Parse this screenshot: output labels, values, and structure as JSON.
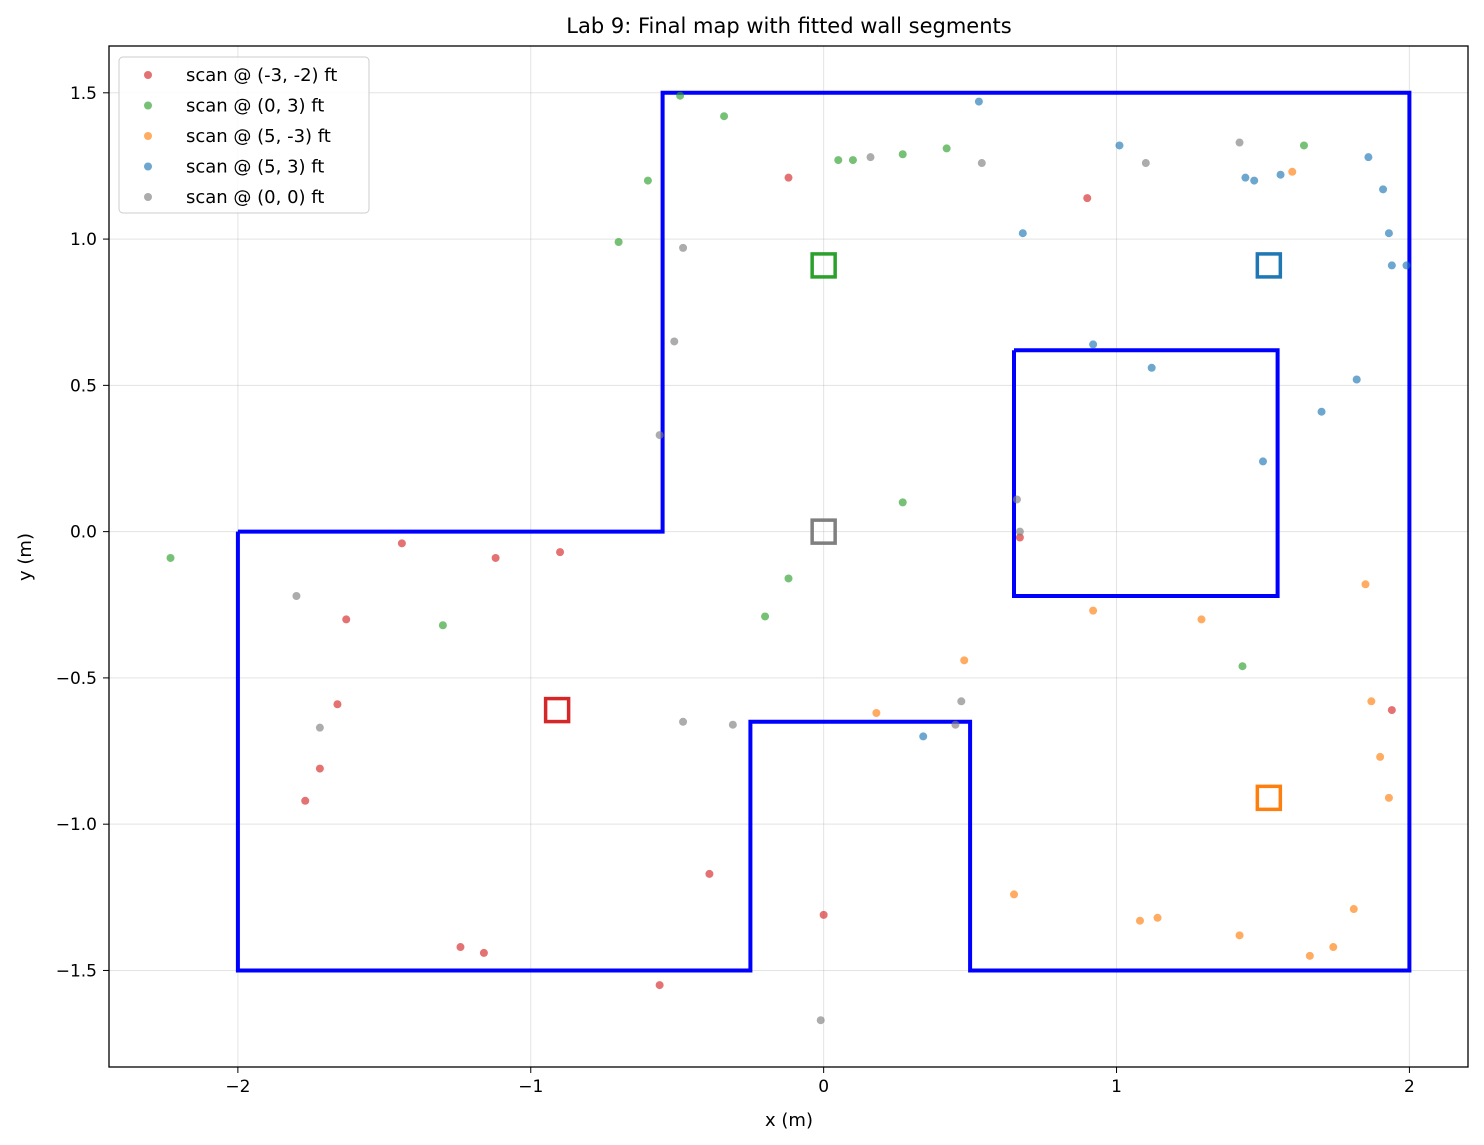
{
  "chart_data": {
    "type": "scatter",
    "title": "Lab 9: Final map with fitted wall segments",
    "xlabel": "x (m)",
    "ylabel": "y (m)",
    "xlim": [
      -2.44,
      2.2
    ],
    "ylim": [
      -1.83,
      1.66
    ],
    "grid": true,
    "legend_position": "top-left",
    "xticks": [
      -2,
      -1,
      0,
      1,
      2
    ],
    "xtick_labels": [
      "−2",
      "−1",
      "0",
      "1",
      "2"
    ],
    "yticks": [
      1.5,
      1.0,
      0.5,
      0.0,
      -0.5,
      -1.0,
      -1.5
    ],
    "ytick_labels": [
      "1.5",
      "1.0",
      "0.5",
      "0.0",
      "−0.5",
      "−1.0",
      "−1.5"
    ],
    "series": [
      {
        "name": "scan @ (-3, -2) ft",
        "color": "#d62728",
        "points": [
          [
            -0.12,
            1.21
          ],
          [
            0.9,
            1.14
          ],
          [
            -1.44,
            -0.04
          ],
          [
            -1.12,
            -0.09
          ],
          [
            -0.9,
            -0.07
          ],
          [
            -1.63,
            -0.3
          ],
          [
            -1.66,
            -0.59
          ],
          [
            -1.72,
            -0.81
          ],
          [
            -1.77,
            -0.92
          ],
          [
            -0.39,
            -1.17
          ],
          [
            -1.24,
            -1.42
          ],
          [
            -1.16,
            -1.44
          ],
          [
            -0.56,
            -1.55
          ],
          [
            0.0,
            -1.31
          ],
          [
            0.67,
            -0.02
          ],
          [
            1.94,
            -0.61
          ]
        ]
      },
      {
        "name": "scan @ (0, 3) ft",
        "color": "#2ca02c",
        "points": [
          [
            -0.49,
            1.49
          ],
          [
            -0.34,
            1.42
          ],
          [
            -0.6,
            1.2
          ],
          [
            -0.7,
            0.99
          ],
          [
            0.05,
            1.27
          ],
          [
            0.1,
            1.27
          ],
          [
            0.27,
            1.29
          ],
          [
            0.42,
            1.31
          ],
          [
            1.64,
            1.32
          ],
          [
            -2.23,
            -0.09
          ],
          [
            -1.3,
            -0.32
          ],
          [
            -0.12,
            -0.16
          ],
          [
            -0.2,
            -0.29
          ],
          [
            0.27,
            0.1
          ],
          [
            1.43,
            -0.46
          ]
        ]
      },
      {
        "name": "scan @ (5, -3) ft",
        "color": "#ff7f0e",
        "points": [
          [
            1.6,
            1.23
          ],
          [
            0.92,
            -0.27
          ],
          [
            1.29,
            -0.3
          ],
          [
            0.48,
            -0.44
          ],
          [
            0.18,
            -0.62
          ],
          [
            1.85,
            -0.18
          ],
          [
            1.87,
            -0.58
          ],
          [
            1.9,
            -0.77
          ],
          [
            1.93,
            -0.91
          ],
          [
            0.65,
            -1.24
          ],
          [
            1.08,
            -1.33
          ],
          [
            1.14,
            -1.32
          ],
          [
            1.42,
            -1.38
          ],
          [
            1.66,
            -1.45
          ],
          [
            1.74,
            -1.42
          ],
          [
            1.81,
            -1.29
          ]
        ]
      },
      {
        "name": "scan @ (5, 3) ft",
        "color": "#1f77b4",
        "points": [
          [
            0.53,
            1.47
          ],
          [
            1.01,
            1.32
          ],
          [
            1.44,
            1.21
          ],
          [
            1.47,
            1.2
          ],
          [
            1.56,
            1.22
          ],
          [
            1.86,
            1.28
          ],
          [
            1.91,
            1.17
          ],
          [
            0.68,
            1.02
          ],
          [
            1.93,
            1.02
          ],
          [
            1.94,
            0.91
          ],
          [
            1.99,
            0.91
          ],
          [
            0.92,
            0.64
          ],
          [
            1.12,
            0.56
          ],
          [
            1.82,
            0.52
          ],
          [
            1.7,
            0.41
          ],
          [
            1.5,
            0.24
          ],
          [
            0.34,
            -0.7
          ]
        ]
      },
      {
        "name": "scan @ (0, 0) ft",
        "color": "#7f7f7f",
        "points": [
          [
            0.16,
            1.28
          ],
          [
            0.54,
            1.26
          ],
          [
            1.1,
            1.26
          ],
          [
            1.42,
            1.33
          ],
          [
            -0.48,
            0.97
          ],
          [
            -0.51,
            0.65
          ],
          [
            -0.56,
            0.33
          ],
          [
            0.66,
            0.11
          ],
          [
            0.67,
            0.0
          ],
          [
            -1.8,
            -0.22
          ],
          [
            -1.72,
            -0.67
          ],
          [
            -0.48,
            -0.65
          ],
          [
            -0.31,
            -0.66
          ],
          [
            0.47,
            -0.58
          ],
          [
            0.45,
            -0.66
          ],
          [
            -0.01,
            -1.67
          ]
        ]
      }
    ],
    "walls": {
      "color": "#0000ff",
      "outer": [
        [
          -2,
          0
        ],
        [
          -0.55,
          0
        ],
        [
          -0.55,
          1.5
        ],
        [
          2,
          1.5
        ],
        [
          2,
          -1.5
        ],
        [
          0.5,
          -1.5
        ],
        [
          0.5,
          -0.65
        ],
        [
          -0.25,
          -0.65
        ],
        [
          -0.25,
          -1.5
        ],
        [
          -2,
          -1.5
        ],
        [
          -2,
          0
        ]
      ],
      "inner": [
        [
          0.65,
          0.62
        ],
        [
          1.55,
          0.62
        ],
        [
          1.55,
          -0.22
        ],
        [
          0.65,
          -0.22
        ],
        [
          0.65,
          0.62
        ]
      ]
    },
    "scan_positions": [
      {
        "x": -0.91,
        "y": -0.61,
        "color": "#d62728"
      },
      {
        "x": 0.0,
        "y": 0.91,
        "color": "#2ca02c"
      },
      {
        "x": 1.52,
        "y": -0.91,
        "color": "#ff7f0e"
      },
      {
        "x": 1.52,
        "y": 0.91,
        "color": "#1f77b4"
      },
      {
        "x": 0.0,
        "y": 0.0,
        "color": "#7f7f7f"
      }
    ]
  }
}
